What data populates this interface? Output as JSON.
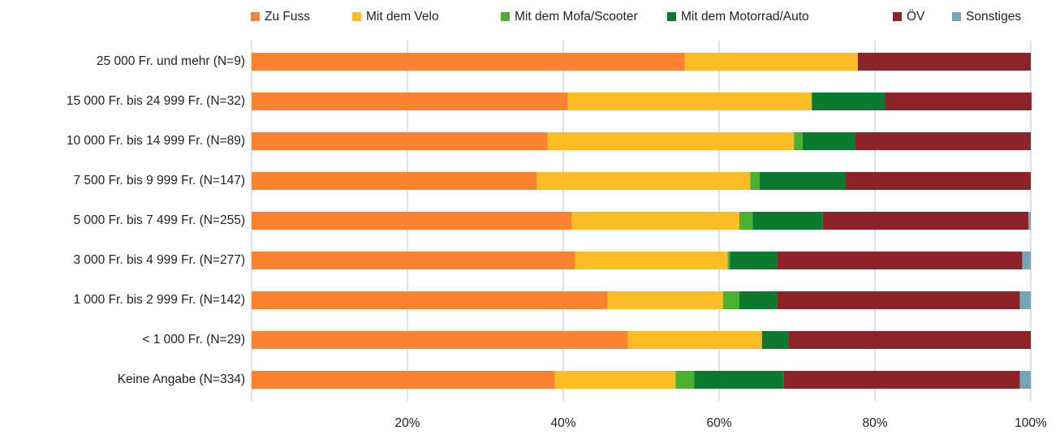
{
  "chart_data": {
    "type": "stacked-barh",
    "categories": [
      "25 000 Fr. und mehr (N=9)",
      "15 000 Fr. bis 24 999 Fr. (N=32)",
      "10 000 Fr. bis 14 999 Fr. (N=89)",
      "7 500 Fr. bis 9 999 Fr. (N=147)",
      "5 000 Fr. bis 7 499 Fr. (N=255)",
      "3 000 Fr. bis 4 999 Fr. (N=277)",
      "1 000 Fr. bis 2 999 Fr. (N=142)",
      "< 1 000 Fr. (N=29)",
      "Keine Angabe (N=334)"
    ],
    "series": [
      {
        "name": "Zu Fuss",
        "color": "#fd8230",
        "values": [
          55.6,
          40.6,
          38.0,
          36.6,
          41.1,
          41.5,
          45.7,
          48.3,
          38.9
        ]
      },
      {
        "name": "Mit dem Velo",
        "color": "#fbbc24",
        "values": [
          22.2,
          31.3,
          31.6,
          27.4,
          21.5,
          19.6,
          14.8,
          17.2,
          15.5
        ]
      },
      {
        "name": "Mit dem Mofa/Scooter",
        "color": "#4caf2e",
        "values": [
          0,
          0,
          1.1,
          1.2,
          1.7,
          0.3,
          2.1,
          0,
          2.4
        ]
      },
      {
        "name": "Mit dem Motorrad/Auto",
        "color": "#0b7a2f",
        "values": [
          0,
          9.4,
          6.8,
          11.0,
          9.0,
          6.1,
          4.9,
          3.4,
          11.5
        ]
      },
      {
        "name": "ÖV",
        "color": "#8b2328",
        "values": [
          22.2,
          18.8,
          22.5,
          23.8,
          26.4,
          31.4,
          31.1,
          31.1,
          30.3
        ]
      },
      {
        "name": "Sonstiges",
        "color": "#74a6b8",
        "values": [
          0,
          0,
          0,
          0,
          0.3,
          1.1,
          1.4,
          0,
          1.4
        ]
      }
    ],
    "xlim": [
      0,
      100
    ],
    "xticks": [
      {
        "value": 20,
        "label": "20%"
      },
      {
        "value": 40,
        "label": "40%"
      },
      {
        "value": 60,
        "label": "60%"
      },
      {
        "value": 80,
        "label": "80%"
      },
      {
        "value": 100,
        "label": "100%"
      }
    ],
    "grid": true,
    "legend": "top"
  }
}
